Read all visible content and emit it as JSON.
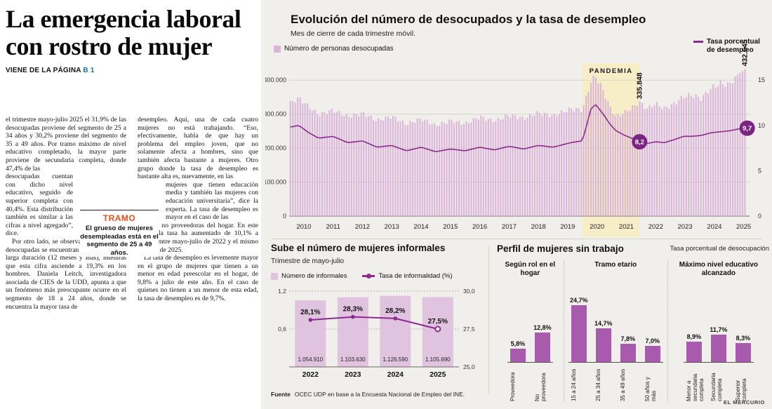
{
  "colors": {
    "line_purple": "#8c2b8d",
    "bar_light": "#d9b4d8",
    "bar_informales": "#dfc3df",
    "bar_perfil": "#a85aac",
    "pandemia_band": "#f7edc6",
    "tramo_orange": "#e8501e",
    "page_ref_blue": "#1472b8",
    "panel_bg": "#f1efeb",
    "circle_purple": "#7c2482"
  },
  "article": {
    "headline": "La emergencia laboral con rostro de mujer",
    "kicker": "VIENE DE LA PÁGINA",
    "kicker_page": "B 1",
    "col1_part1": "el trimestre mayo-julio 2025 el 31,9% de las desocupadas proviene del segmento de 25 a 34 años y 30,2% proviene del segmento de 35 a 49 años. Por tramo máximo de nivel educativo completado, la mayor parte proviene de secundaria completa, donde 47,4% de las",
    "col1_part2": "desocupadas cuentan con dicho nivel educativo, seguido de superior completa con 40,4%. Esta distribución también es similar a las cifras a nivel agregado”, dice.",
    "col1_part3": "Por otro lado, se observa que 18% de las desocupadas se encuentran en desempleo de larga duración (12 meses y más), mientras que esta cifra asciende a 19,3% en los hombres. Daniela Leitch, investigadora asociada de CIES de la UDD, apunta a que un fenómeno más preocupante ocurre en el segmento de 18 a 24 años, donde se encuentra la mayor tasa de",
    "col2_part1": "desempleo. Aquí, una de cada cuatro mujeres no está trabajando. “Eso, efectivamente, habla de que hay un problema del empleo joven, que no solamente afecta a hombres, sino que también afecta bastante a mujeres. Otro grupo donde la tasa de desempleo es bastante alta es, nuevamente, en las",
    "col2_part2": "mujeres que tienen educación media y también las mujeres con educación universitaria”, dice la experta. La tasa de desempleo es mayor en el caso de las",
    "col2_part3a": "mujeres no proveedoras del hogar. En este grupo, la tasa ha aumentado de 10,1% a 12,8% entre mayo-julio de 2022 y el mismo período de 2025.",
    "col2_part3b": "La tasa de desempleo es levemente mayor en el grupo de mujeres que tienen a un menor en edad preescolar en el hogar, de 9,8% a julio de este año. En el caso de quienes no tienen a un menor de esta edad, la tasa de desempleo es de 9,7%.",
    "tramo_box": {
      "title": "TRAMO",
      "text": "El grueso de mujeres desempleadas está en el segmento de 25 a 49 años."
    }
  },
  "chart_data": [
    {
      "type": "bar",
      "title": "Evolución del número de desocupados y la tasa de desempleo",
      "subtitle": "Mes de cierre de cada trimestre móvil.",
      "legend": [
        "Número de personas desocupadas",
        "Tasa porcentual de desempleo"
      ],
      "x_ticks": [
        2010,
        2011,
        2012,
        2013,
        2014,
        2015,
        2016,
        2017,
        2018,
        2019,
        2020,
        2021,
        2022,
        2023,
        2024,
        2025
      ],
      "x_domain": [
        2010.0,
        2025.7
      ],
      "ylim_left": [
        0,
        450000
      ],
      "y_ticks_left": [
        [
          400000,
          "400.000"
        ],
        [
          300000,
          "300.000"
        ],
        [
          200000,
          "200.000"
        ],
        [
          100000,
          "100.000"
        ],
        [
          0,
          "0"
        ]
      ],
      "ylim_right": [
        0,
        16.875
      ],
      "y_ticks_right": [
        [
          15,
          "15"
        ],
        [
          10,
          "10"
        ],
        [
          5,
          "5"
        ],
        [
          0,
          "0"
        ]
      ],
      "pandemia": {
        "from": 2020.0,
        "to": 2021.95,
        "label": "PANDEMIA"
      },
      "annotations": {
        "bar_peaks": [
          {
            "t": 2021.95,
            "label": "335.848"
          },
          {
            "t": 2025.55,
            "label": "432.645"
          }
        ],
        "rate_points": [
          {
            "t": 2021.95,
            "value": 8.2,
            "label": "8,2"
          },
          {
            "t": 2025.62,
            "value": 9.7,
            "label": "9,7"
          }
        ]
      },
      "anchors": [
        [
          2010.0,
          330000,
          9.8
        ],
        [
          2010.33,
          348000,
          10.0
        ],
        [
          2010.67,
          322000,
          9.2
        ],
        [
          2011.0,
          298000,
          8.6
        ],
        [
          2011.5,
          312000,
          8.8
        ],
        [
          2012.0,
          292000,
          8.1
        ],
        [
          2012.5,
          303000,
          8.3
        ],
        [
          2013.0,
          281000,
          7.6
        ],
        [
          2013.5,
          294000,
          7.8
        ],
        [
          2014.0,
          270000,
          7.2
        ],
        [
          2014.5,
          287000,
          7.6
        ],
        [
          2015.0,
          266000,
          7.1
        ],
        [
          2015.5,
          281000,
          7.4
        ],
        [
          2016.0,
          271000,
          7.2
        ],
        [
          2016.5,
          292000,
          7.6
        ],
        [
          2017.0,
          279000,
          7.3
        ],
        [
          2017.5,
          297000,
          7.7
        ],
        [
          2018.0,
          287000,
          7.4
        ],
        [
          2018.5,
          304000,
          7.8
        ],
        [
          2019.0,
          294000,
          7.6
        ],
        [
          2019.6,
          316000,
          8.1
        ],
        [
          2020.0,
          312000,
          8.3
        ],
        [
          2020.3,
          398000,
          11.9
        ],
        [
          2020.45,
          412000,
          12.3
        ],
        [
          2020.7,
          372000,
          11.3
        ],
        [
          2020.95,
          318000,
          10.1
        ],
        [
          2021.15,
          292000,
          9.4
        ],
        [
          2021.45,
          306000,
          8.9
        ],
        [
          2021.75,
          322000,
          8.5
        ],
        [
          2021.95,
          335848,
          8.2
        ],
        [
          2022.2,
          316000,
          8.0
        ],
        [
          2022.5,
          331000,
          8.2
        ],
        [
          2022.8,
          317000,
          8.1
        ],
        [
          2023.1,
          328000,
          8.4
        ],
        [
          2023.45,
          352000,
          8.8
        ],
        [
          2023.75,
          356000,
          8.8
        ],
        [
          2024.05,
          346000,
          8.9
        ],
        [
          2024.4,
          377000,
          9.2
        ],
        [
          2024.7,
          391000,
          9.3
        ],
        [
          2025.0,
          386000,
          9.4
        ],
        [
          2025.3,
          417000,
          9.6
        ],
        [
          2025.55,
          432645,
          9.7
        ]
      ]
    },
    {
      "type": "bar",
      "title": "Sube el número de mujeres informales",
      "subtitle": "Trimestre de mayo-julio",
      "legend": [
        "Número de informales",
        "Tasa de informalidad (%)"
      ],
      "categories": [
        "2022",
        "2023",
        "2024",
        "2025"
      ],
      "values_millions": [
        1.05491,
        1.10363,
        1.12659,
        1.10569
      ],
      "bar_labels": [
        "1.054.910",
        "1.103.630",
        "1.126.590",
        "1.105.690"
      ],
      "rate_values": [
        28.1,
        28.3,
        28.2,
        27.5
      ],
      "rate_labels": [
        "28,1%",
        "28,3%",
        "28,2%",
        "27,5%"
      ],
      "ylim_left": [
        0,
        1.2
      ],
      "y_ticks_left": [
        [
          1.2,
          "1,2"
        ],
        [
          0.6,
          "0,6"
        ]
      ],
      "ylim_right": [
        25,
        30
      ],
      "y_ticks_right": [
        [
          30,
          "30,0"
        ],
        [
          27.5,
          "27,5"
        ],
        [
          25,
          "25,0"
        ]
      ]
    },
    {
      "type": "bar",
      "title": "Perfil de mujeres sin trabajo",
      "note": "Tasa porcentual de desocupación",
      "groups": [
        {
          "title": "Según rol en el hogar",
          "categories": [
            "Proveedora",
            "No proveedora"
          ],
          "values": [
            5.8,
            12.8
          ],
          "labels": [
            "5,8%",
            "12,8%"
          ]
        },
        {
          "title": "Tramo etario",
          "categories": [
            "15 a 24 años",
            "25 a 34 años",
            "35 a 49 años",
            "50 años y más"
          ],
          "values": [
            24.7,
            14.7,
            7.8,
            7.0
          ],
          "labels": [
            "24,7%",
            "14,7%",
            "7,8%",
            "7,0%"
          ]
        },
        {
          "title": "Máximo nivel educativo alcanzado",
          "categories": [
            "Menor a secundaria completa",
            "Secundaria completa",
            "Superior completa"
          ],
          "values": [
            8.9,
            11.7,
            8.3
          ],
          "labels": [
            "8,9%",
            "11,7%",
            "8,3%"
          ]
        }
      ]
    }
  ],
  "footer": {
    "fuente_label": "Fuente",
    "fuente_text": "OCEC UDP en base a la Encuesta Nacional de Empleo del INE.",
    "brand": "EL MERCURIO"
  }
}
